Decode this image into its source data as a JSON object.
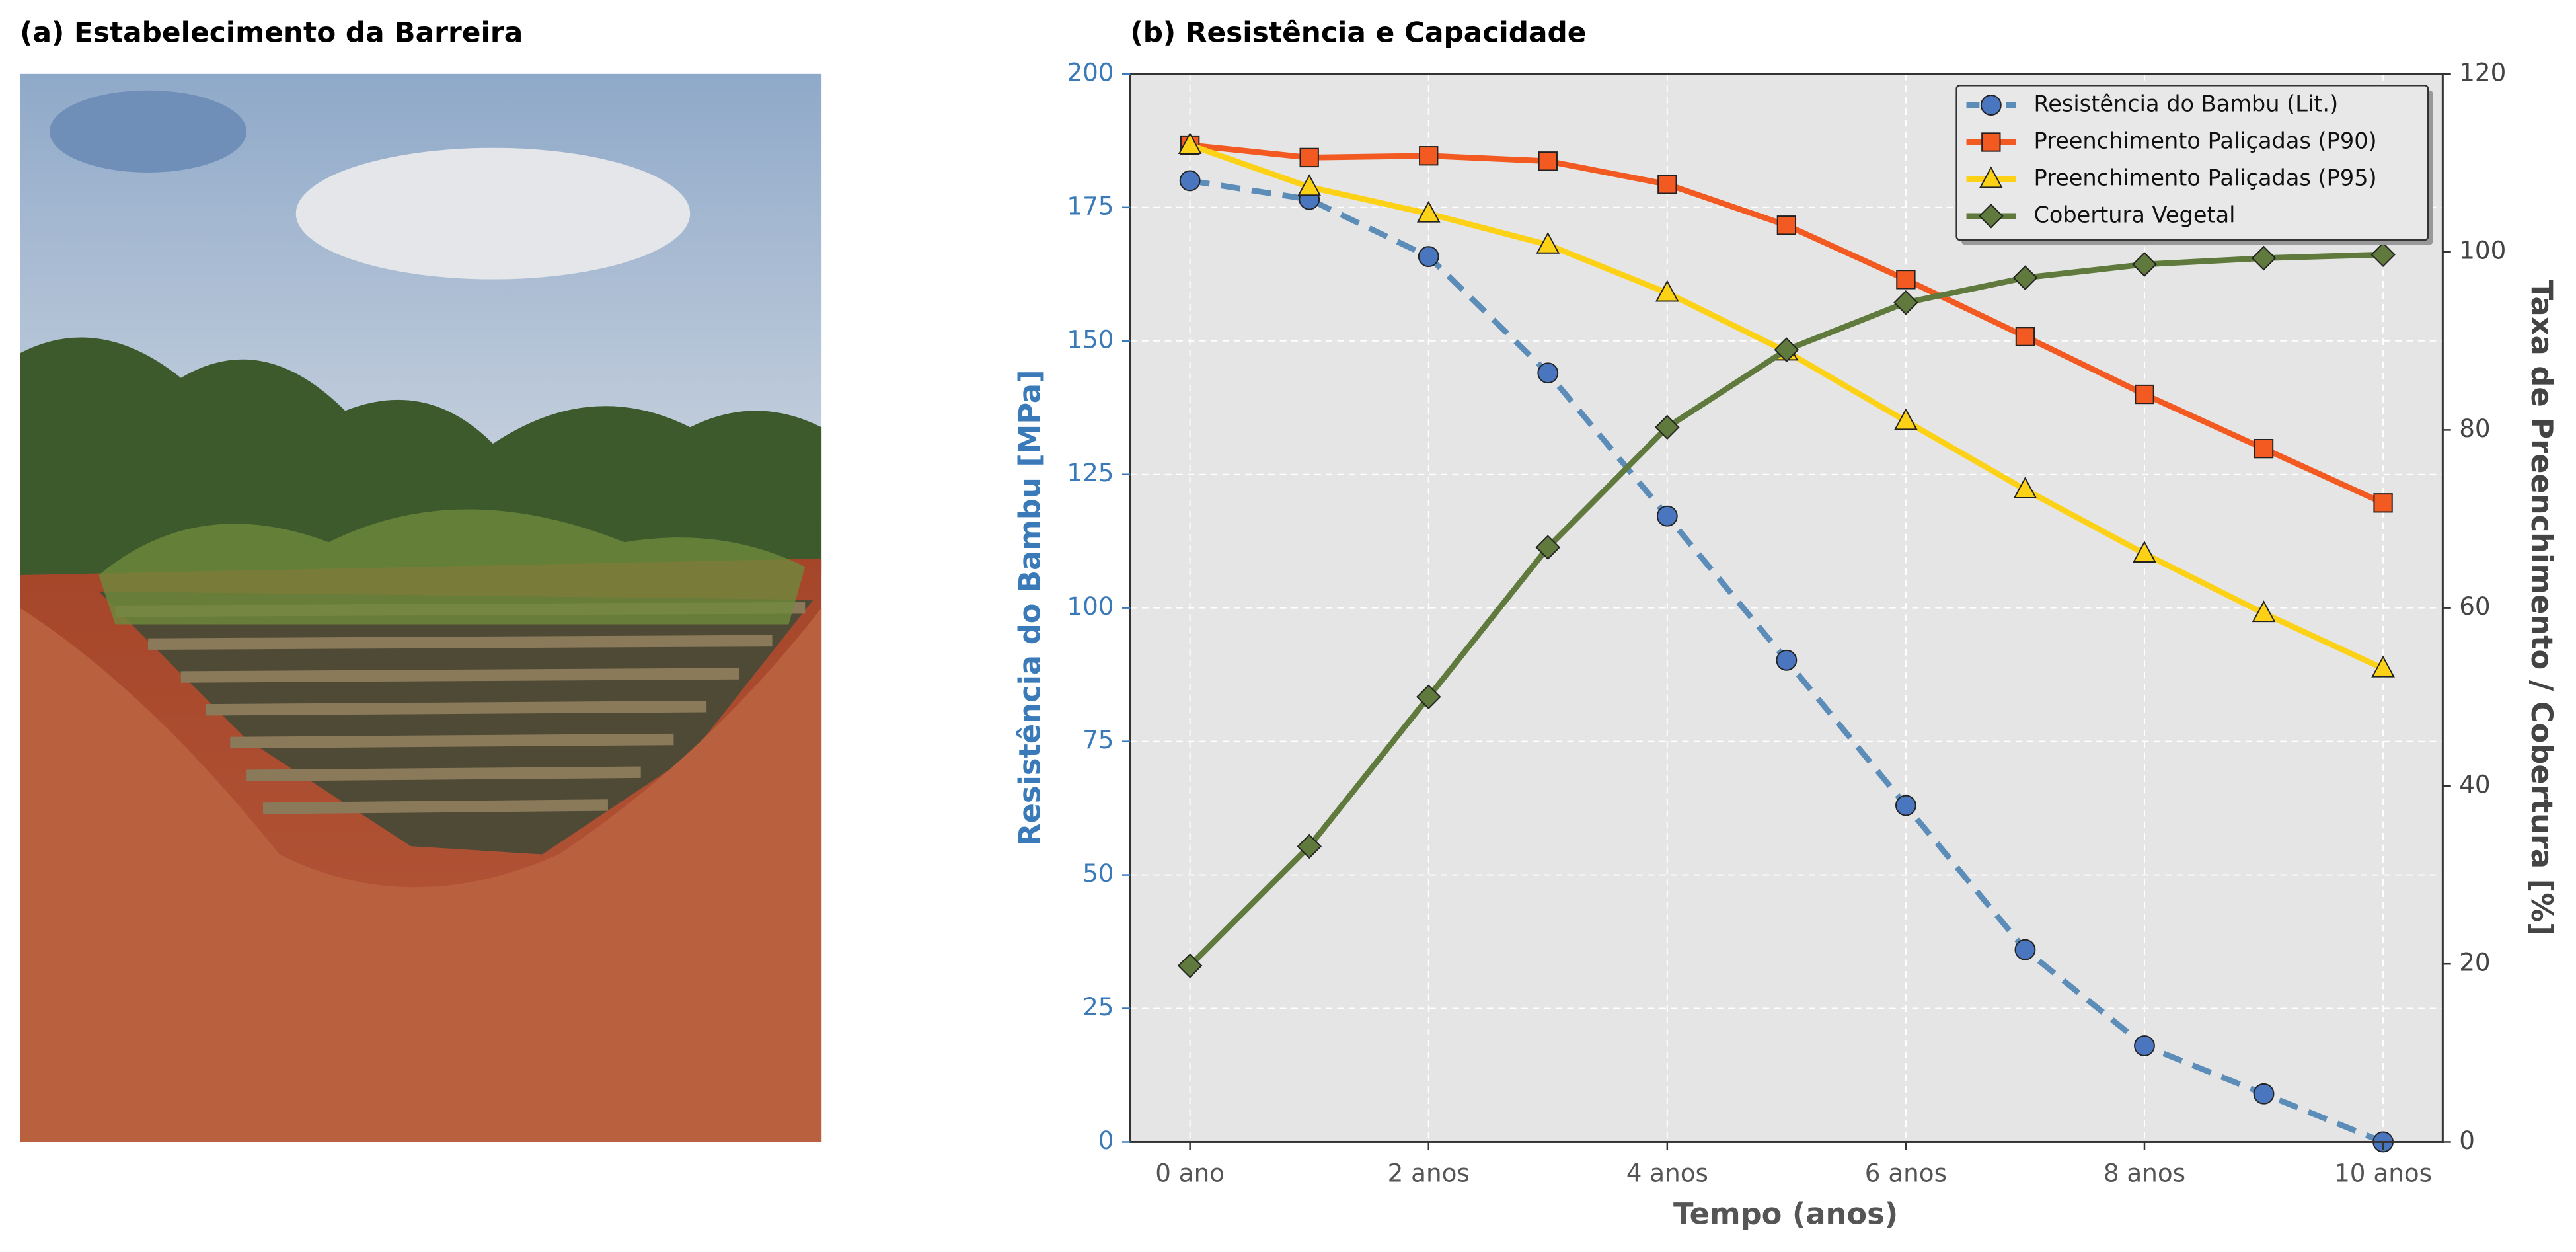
{
  "photo_panel": {
    "title": "(a) Estabelecimento da Barreira"
  },
  "chart_data": {
    "type": "line",
    "title": "(b) Resistência e Capacidade",
    "x_label": "Tempo (anos)",
    "y_label": "Resistência do Bambu [MPa]",
    "y2_label": "Taxa de Preenchimento / Cobertura [%]",
    "x": [
      0,
      1,
      2,
      3,
      4,
      5,
      6,
      7,
      8,
      9,
      10
    ],
    "xlim": [
      -0.5,
      10.5
    ],
    "xticks": [
      {
        "value": 0,
        "label": "0 ano"
      },
      {
        "value": 2,
        "label": "2 anos"
      },
      {
        "value": 4,
        "label": "4 anos"
      },
      {
        "value": 6,
        "label": "6 anos"
      },
      {
        "value": 8,
        "label": "8 anos"
      },
      {
        "value": 10,
        "label": "10 anos"
      }
    ],
    "ylim": [
      0,
      200
    ],
    "yticks": [
      0,
      25,
      50,
      75,
      100,
      125,
      150,
      175,
      200
    ],
    "y2lim": [
      0,
      120
    ],
    "y2ticks": [
      0,
      20,
      40,
      60,
      80,
      100,
      120
    ],
    "grid": true,
    "legend": "upper right",
    "series": [
      {
        "name": "Resistência do Bambu (Lit.)",
        "color": "#5b8db8",
        "marker_color": "#4a76c0",
        "marker": "circle",
        "dashed": true,
        "axis": "y",
        "values": [
          180,
          176.5,
          165.8,
          144,
          117.2,
          90.2,
          63,
          36,
          18,
          9,
          0
        ]
      },
      {
        "name": "Preenchimento Paliçadas (P90)",
        "color": "#f25a22",
        "marker_color": "#f25a22",
        "marker": "square",
        "dashed": false,
        "axis": "y2",
        "values": [
          112,
          110.6,
          110.8,
          110.2,
          107.6,
          103,
          96.9,
          90.5,
          84,
          77.9,
          71.8
        ]
      },
      {
        "name": "Preenchimento Paliçadas (P95)",
        "color": "#fcd116",
        "marker_color": "#fcd116",
        "marker": "triangle",
        "dashed": false,
        "axis": "y2",
        "values": [
          112,
          107.3,
          104.3,
          100.8,
          95.4,
          88.8,
          81,
          73.3,
          66.1,
          59.4,
          53.2
        ]
      },
      {
        "name": "Cobertura Vegetal",
        "color": "#5f7a3c",
        "marker_color": "#5f7a3c",
        "marker": "diamond",
        "dashed": false,
        "axis": "y2",
        "values": [
          19.8,
          33.2,
          50,
          66.8,
          80.3,
          89,
          94.3,
          97.1,
          98.6,
          99.3,
          99.7
        ]
      }
    ]
  }
}
